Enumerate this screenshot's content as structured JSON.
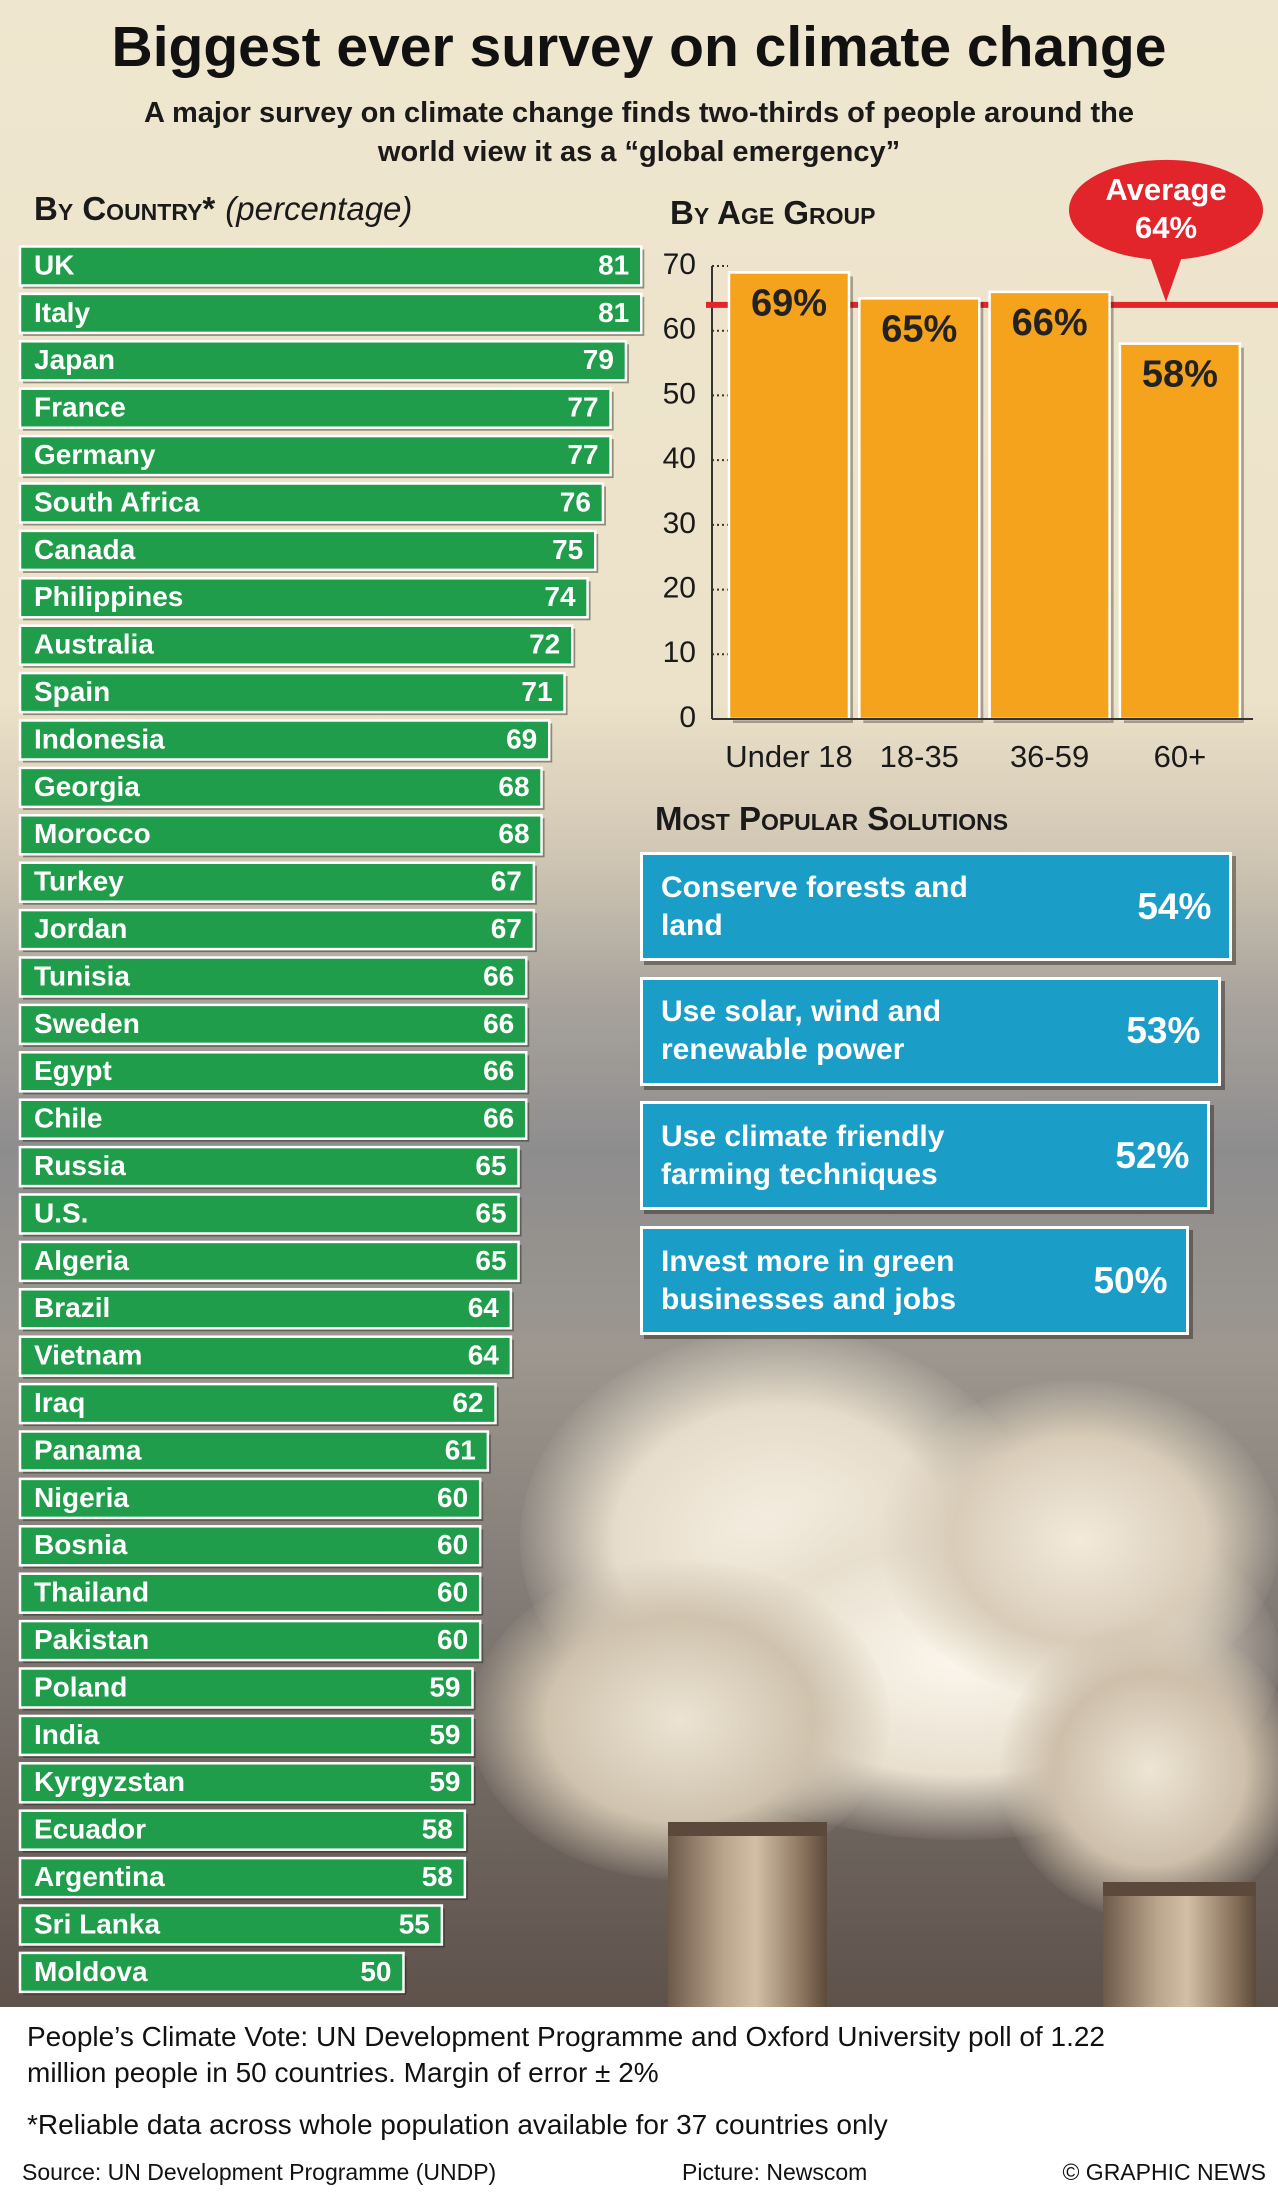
{
  "header": {
    "title": "Biggest ever survey on climate change",
    "subtitle": "A major survey on climate change finds two-thirds of people around the world view it as a “global emergency”"
  },
  "chart_data": [
    {
      "type": "bar",
      "orientation": "horizontal",
      "title": "By Country*",
      "subtitle": "(percentage)",
      "categories": [
        "UK",
        "Italy",
        "Japan",
        "France",
        "Germany",
        "South Africa",
        "Canada",
        "Philippines",
        "Australia",
        "Spain",
        "Indonesia",
        "Georgia",
        "Morocco",
        "Turkey",
        "Jordan",
        "Tunisia",
        "Sweden",
        "Egypt",
        "Chile",
        "Russia",
        "U.S.",
        "Algeria",
        "Brazil",
        "Vietnam",
        "Iraq",
        "Panama",
        "Nigeria",
        "Bosnia",
        "Thailand",
        "Pakistan",
        "Poland",
        "India",
        "Kyrgyzstan",
        "Ecuador",
        "Argentina",
        "Sri Lanka",
        "Moldova"
      ],
      "values": [
        81,
        81,
        79,
        77,
        77,
        76,
        75,
        74,
        72,
        71,
        69,
        68,
        68,
        67,
        67,
        66,
        66,
        66,
        66,
        65,
        65,
        65,
        64,
        64,
        62,
        61,
        60,
        60,
        60,
        60,
        59,
        59,
        59,
        58,
        58,
        55,
        50
      ],
      "color": "#1f9d4a"
    },
    {
      "type": "bar",
      "title": "By Age Group",
      "categories": [
        "Under 18",
        "18-35",
        "36-59",
        "60+"
      ],
      "values": [
        69,
        65,
        66,
        58
      ],
      "value_labels": [
        "69%",
        "65%",
        "66%",
        "58%"
      ],
      "color": "#f5a31c",
      "ylim": [
        0,
        70
      ],
      "yticks": [
        0,
        10,
        20,
        30,
        40,
        50,
        60,
        70
      ],
      "grid": false,
      "average": {
        "label": "Average",
        "value": 64,
        "value_label": "64%",
        "color": "#e2242b"
      }
    },
    {
      "type": "bar",
      "orientation": "horizontal",
      "title": "Most Popular Solutions",
      "categories": [
        "Conserve forests and land",
        "Use solar, wind and renewable power",
        "Use climate friendly farming techniques",
        "Invest more in green businesses and jobs"
      ],
      "values": [
        54,
        53,
        52,
        50
      ],
      "value_labels": [
        "54%",
        "53%",
        "52%",
        "50%"
      ],
      "color": "#1a9dc6"
    }
  ],
  "footer": {
    "notes": [
      "People’s Climate Vote: UN Development Programme and Oxford University poll of 1.22 million people in 50 countries. Margin of error ± 2%",
      "*Reliable data across whole population available for 37 countries only"
    ],
    "source": "Source: UN Development Programme (UNDP)",
    "picture": "Picture: Newscom",
    "credit": "© GRAPHIC NEWS"
  }
}
